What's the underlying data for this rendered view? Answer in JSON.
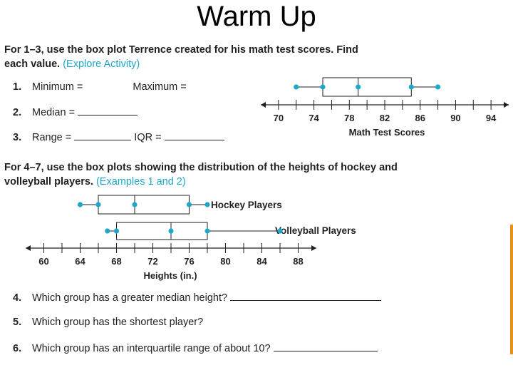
{
  "title": "Warm Up",
  "section1": {
    "intro_bold": "For 1–3, use the box plot Terrence created for his math test scores. Find each value.",
    "intro_link": "(Explore Activity)",
    "q1": {
      "num": "1.",
      "text_a": "Minimum =",
      "text_b": "Maximum ="
    },
    "q2": {
      "num": "2.",
      "text": "Median ="
    },
    "q3": {
      "num": "3.",
      "text_a": "Range =",
      "text_b": "IQR ="
    }
  },
  "section2": {
    "intro_bold": "For 4–7, use the box plots showing the distribution of the heights of hockey and volleyball players.",
    "intro_link": "(Examples 1 and 2)",
    "q4": {
      "num": "4.",
      "text": "Which group has a greater median height?"
    },
    "q5": {
      "num": "5.",
      "text": "Which group has the shortest player?"
    },
    "q6": {
      "num": "6.",
      "text": "Which group has an interquartile range of about 10?"
    }
  },
  "colors": {
    "dot": "#1ea8c8",
    "ink": "#231f20",
    "accent_edge": "#e8901a"
  },
  "chart_data": [
    {
      "type": "box",
      "xlabel": "Math Test Scores",
      "xlim": [
        68,
        96
      ],
      "ticks": [
        70,
        74,
        78,
        82,
        86,
        90,
        94
      ],
      "series": [
        {
          "min": 72,
          "q1": 75,
          "median": 79,
          "q3": 85,
          "max": 88
        }
      ]
    },
    {
      "type": "box",
      "xlabel": "Heights (in.)",
      "xlim": [
        58,
        90
      ],
      "ticks": [
        60,
        64,
        68,
        72,
        76,
        80,
        84,
        88
      ],
      "series": [
        {
          "name": "Hockey Players",
          "min": 64,
          "q1": 66,
          "median": 70,
          "q3": 76,
          "max": 78
        },
        {
          "name": "Volleyball Players",
          "min": 67,
          "q1": 68,
          "median": 74,
          "q3": 78,
          "max": 86
        }
      ]
    }
  ]
}
